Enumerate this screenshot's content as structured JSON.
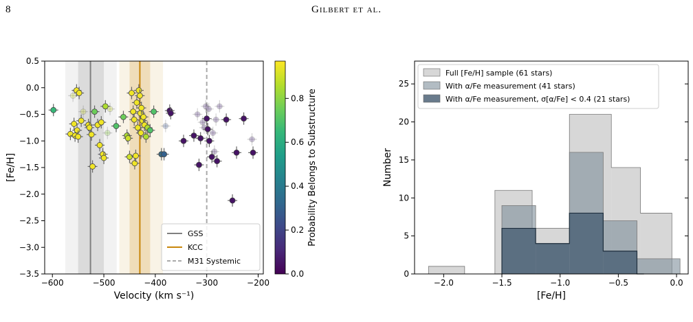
{
  "header": {
    "page_number": "8",
    "running_head": "Gilbert et al."
  },
  "colors": {
    "gss": "#808080",
    "kcc": "#c8860a",
    "systemic": "#aaaaaa",
    "hist_full": "#bdbdbd",
    "hist_alpha": "#7f8f9b",
    "hist_alpha_good": "#4f6478"
  },
  "chart_data": [
    {
      "type": "scatter",
      "title": "",
      "xlabel": "Velocity (km s⁻¹)",
      "ylabel": "[Fe/H]",
      "xlim": [
        -615,
        -190
      ],
      "ylim": [
        -3.5,
        0.5
      ],
      "xticks": [
        -600,
        -500,
        -400,
        -300,
        -200
      ],
      "xtick_labels": [
        "−600",
        "−500",
        "−400",
        "−300",
        "−200"
      ],
      "yticks": [
        0.5,
        0.0,
        -0.5,
        -1.0,
        -1.5,
        -2.0,
        -2.5,
        -3.0,
        -3.5
      ],
      "ytick_labels": [
        "0.5",
        "0.0",
        "−0.5",
        "−1.0",
        "−1.5",
        "−2.0",
        "−2.5",
        "−3.0",
        "−3.5"
      ],
      "colorbar": {
        "label": "Probability Belongs to Substructure",
        "range": [
          0,
          0.97
        ],
        "ticks": [
          0.0,
          0.2,
          0.4,
          0.6,
          0.8
        ],
        "tick_labels": [
          "0.0",
          "0.2",
          "0.4",
          "0.6",
          "0.8"
        ]
      },
      "bands": [
        {
          "center": -526,
          "inner": [
            -550,
            -500
          ],
          "outer": [
            -575,
            -475
          ],
          "color_key": "gss"
        },
        {
          "center": -430,
          "inner": [
            -450,
            -410
          ],
          "outer": [
            -470,
            -385
          ],
          "color_key": "kcc"
        }
      ],
      "legend": {
        "position": "lower right",
        "entries": [
          {
            "label": "GSS",
            "color_key": "gss",
            "style": "solid"
          },
          {
            "label": "KCC",
            "color_key": "kcc",
            "style": "solid"
          },
          {
            "label": "M31 Systemic",
            "color_key": "systemic",
            "style": "dashed"
          }
        ]
      },
      "vlines": [
        {
          "x": -526,
          "color_key": "gss",
          "style": "solid"
        },
        {
          "x": -430,
          "color_key": "kcc",
          "style": "solid"
        },
        {
          "x": -300,
          "color_key": "systemic",
          "style": "dashed"
        }
      ],
      "points": [
        {
          "x": -598,
          "y": -0.42,
          "p": 0.65,
          "faded": false
        },
        {
          "x": -560,
          "y": -0.15,
          "p": 0.9,
          "faded": true
        },
        {
          "x": -553,
          "y": -0.05,
          "p": 0.95,
          "faded": false
        },
        {
          "x": -548,
          "y": -0.1,
          "p": 0.95,
          "faded": false
        },
        {
          "x": -565,
          "y": -0.87,
          "p": 0.95,
          "faded": false
        },
        {
          "x": -558,
          "y": -0.68,
          "p": 0.95,
          "faded": false
        },
        {
          "x": -556,
          "y": -0.9,
          "p": 0.95,
          "faded": false
        },
        {
          "x": -552,
          "y": -0.8,
          "p": 0.95,
          "faded": false
        },
        {
          "x": -550,
          "y": -0.92,
          "p": 0.95,
          "faded": false
        },
        {
          "x": -544,
          "y": -0.62,
          "p": 0.95,
          "faded": false
        },
        {
          "x": -540,
          "y": -0.45,
          "p": 0.9,
          "faded": true
        },
        {
          "x": -530,
          "y": -0.7,
          "p": 0.95,
          "faded": false
        },
        {
          "x": -528,
          "y": -0.75,
          "p": 0.95,
          "faded": false
        },
        {
          "x": -524,
          "y": -0.88,
          "p": 0.95,
          "faded": false
        },
        {
          "x": -522,
          "y": -1.48,
          "p": 0.95,
          "faded": false
        },
        {
          "x": -518,
          "y": -0.45,
          "p": 0.75,
          "faded": false
        },
        {
          "x": -512,
          "y": -0.7,
          "p": 0.95,
          "faded": false
        },
        {
          "x": -508,
          "y": -1.08,
          "p": 0.95,
          "faded": false
        },
        {
          "x": -505,
          "y": -0.65,
          "p": 0.95,
          "faded": false
        },
        {
          "x": -502,
          "y": -1.25,
          "p": 0.95,
          "faded": false
        },
        {
          "x": -500,
          "y": -1.32,
          "p": 0.95,
          "faded": false
        },
        {
          "x": -497,
          "y": -0.35,
          "p": 0.85,
          "faded": false
        },
        {
          "x": -493,
          "y": -0.85,
          "p": 0.8,
          "faded": true
        },
        {
          "x": -488,
          "y": -0.4,
          "p": 0.9,
          "faded": true
        },
        {
          "x": -476,
          "y": -0.72,
          "p": 0.7,
          "faded": false
        },
        {
          "x": -462,
          "y": -0.55,
          "p": 0.75,
          "faded": false
        },
        {
          "x": -455,
          "y": -0.9,
          "p": 0.85,
          "faded": false
        },
        {
          "x": -453,
          "y": -0.95,
          "p": 0.9,
          "faded": false
        },
        {
          "x": -450,
          "y": -1.3,
          "p": 0.9,
          "faded": false
        },
        {
          "x": -446,
          "y": -0.1,
          "p": 0.95,
          "faded": false
        },
        {
          "x": -443,
          "y": -0.45,
          "p": 0.95,
          "faded": false
        },
        {
          "x": -441,
          "y": -0.6,
          "p": 0.95,
          "faded": false
        },
        {
          "x": -440,
          "y": -1.42,
          "p": 0.95,
          "faded": false
        },
        {
          "x": -438,
          "y": -1.28,
          "p": 0.95,
          "faded": false
        },
        {
          "x": -436,
          "y": -0.28,
          "p": 0.95,
          "faded": false
        },
        {
          "x": -434,
          "y": -0.75,
          "p": 0.95,
          "faded": false
        },
        {
          "x": -432,
          "y": -0.05,
          "p": 0.95,
          "faded": false
        },
        {
          "x": -430,
          "y": -0.15,
          "p": 0.95,
          "faded": false
        },
        {
          "x": -429,
          "y": -0.48,
          "p": 0.95,
          "faded": false
        },
        {
          "x": -428,
          "y": -0.85,
          "p": 0.95,
          "faded": false
        },
        {
          "x": -427,
          "y": -0.38,
          "p": 0.95,
          "faded": false
        },
        {
          "x": -425,
          "y": -0.62,
          "p": 0.95,
          "faded": false
        },
        {
          "x": -423,
          "y": -0.55,
          "p": 0.95,
          "faded": false
        },
        {
          "x": -421,
          "y": -0.7,
          "p": 0.95,
          "faded": false
        },
        {
          "x": -418,
          "y": -0.92,
          "p": 0.85,
          "faded": false
        },
        {
          "x": -415,
          "y": -0.75,
          "p": 0.85,
          "faded": false
        },
        {
          "x": -410,
          "y": -0.8,
          "p": 0.7,
          "faded": false
        },
        {
          "x": -403,
          "y": -0.45,
          "p": 0.7,
          "faded": false
        },
        {
          "x": -388,
          "y": -1.25,
          "p": 0.35,
          "faded": false
        },
        {
          "x": -383,
          "y": -1.25,
          "p": 0.3,
          "faded": false
        },
        {
          "x": -380,
          "y": -0.72,
          "p": 0.25,
          "faded": true
        },
        {
          "x": -372,
          "y": -0.43,
          "p": 0.05,
          "faded": false
        },
        {
          "x": -370,
          "y": -0.48,
          "p": 0.05,
          "faded": false
        },
        {
          "x": -345,
          "y": -1.0,
          "p": 0.05,
          "faded": false
        },
        {
          "x": -325,
          "y": -0.9,
          "p": 0.05,
          "faded": false
        },
        {
          "x": -318,
          "y": -0.5,
          "p": 0.1,
          "faded": true
        },
        {
          "x": -315,
          "y": -1.45,
          "p": 0.05,
          "faded": false
        },
        {
          "x": -312,
          "y": -0.95,
          "p": 0.05,
          "faded": false
        },
        {
          "x": -308,
          "y": -0.65,
          "p": 0.1,
          "faded": true
        },
        {
          "x": -305,
          "y": -0.75,
          "p": 0.1,
          "faded": true
        },
        {
          "x": -302,
          "y": -0.35,
          "p": 0.1,
          "faded": true
        },
        {
          "x": -300,
          "y": -0.58,
          "p": 0.05,
          "faded": false
        },
        {
          "x": -298,
          "y": -0.78,
          "p": 0.05,
          "faded": false
        },
        {
          "x": -296,
          "y": -0.4,
          "p": 0.1,
          "faded": true
        },
        {
          "x": -295,
          "y": -1.0,
          "p": 0.05,
          "faded": false
        },
        {
          "x": -290,
          "y": -1.3,
          "p": 0.05,
          "faded": false
        },
        {
          "x": -288,
          "y": -0.85,
          "p": 0.1,
          "faded": true
        },
        {
          "x": -285,
          "y": -1.2,
          "p": 0.1,
          "faded": true
        },
        {
          "x": -282,
          "y": -0.6,
          "p": 0.1,
          "faded": true
        },
        {
          "x": -280,
          "y": -1.38,
          "p": 0.05,
          "faded": false
        },
        {
          "x": -275,
          "y": -0.35,
          "p": 0.1,
          "faded": true
        },
        {
          "x": -262,
          "y": -0.6,
          "p": 0.05,
          "faded": false
        },
        {
          "x": -250,
          "y": -2.12,
          "p": 0.05,
          "faded": false
        },
        {
          "x": -242,
          "y": -1.22,
          "p": 0.05,
          "faded": false
        },
        {
          "x": -228,
          "y": -0.58,
          "p": 0.05,
          "faded": false
        },
        {
          "x": -212,
          "y": -0.97,
          "p": 0.1,
          "faded": true
        },
        {
          "x": -210,
          "y": -1.22,
          "p": 0.05,
          "faded": false
        }
      ]
    },
    {
      "type": "bar",
      "title": "",
      "xlabel": "[Fe/H]",
      "ylabel": "Number",
      "xlim": [
        -2.25,
        0.1
      ],
      "ylim": [
        0,
        28
      ],
      "xticks": [
        -2.0,
        -1.5,
        -1.0,
        -0.5,
        0.0
      ],
      "xtick_labels": [
        "−2.0",
        "−1.5",
        "−1.0",
        "−0.5",
        "0.0"
      ],
      "yticks": [
        0,
        5,
        10,
        15,
        20,
        25
      ],
      "ytick_labels": [
        "0",
        "5",
        "10",
        "15",
        "20",
        "25"
      ],
      "legend_position": "upper left",
      "series": [
        {
          "name": "Full [Fe/H] sample (61 stars)",
          "color_key": "hist_full",
          "opacity": 0.6,
          "edges": [
            -2.13,
            -1.82,
            -1.56,
            -1.24,
            -0.92,
            -0.56,
            -0.31,
            -0.04
          ],
          "counts": [
            1,
            0,
            11,
            6,
            21,
            14,
            8
          ]
        },
        {
          "name": "With α/Fe measurement (41 stars)",
          "color_key": "hist_alpha",
          "opacity": 0.6,
          "edges": [
            -1.5,
            -1.21,
            -0.92,
            -0.63,
            -0.34,
            0.03
          ],
          "counts": [
            9,
            4,
            16,
            7,
            2
          ]
        },
        {
          "name": "With α/Fe measurement, σ[α/Fe] < 0.4 (21 stars)",
          "color_key": "hist_alpha_good",
          "opacity": 0.85,
          "edges": [
            -1.5,
            -1.21,
            -0.92,
            -0.63,
            -0.34,
            -0.28
          ],
          "counts": [
            6,
            4,
            8,
            3,
            0
          ]
        }
      ]
    }
  ]
}
